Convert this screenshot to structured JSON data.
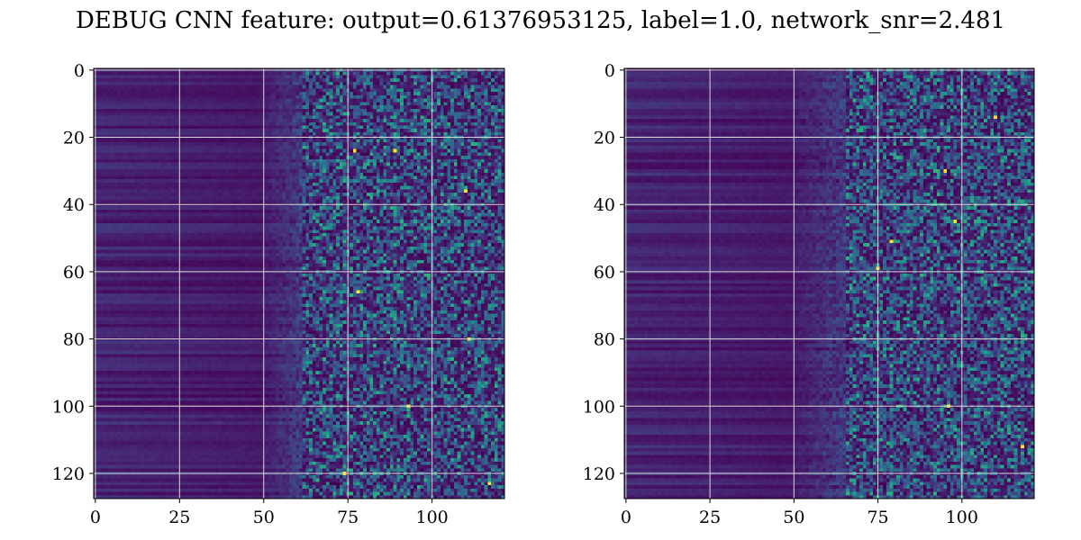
{
  "title": "DEBUG CNN feature: output=0.61376953125, label=1.0, network_snr=2.481",
  "colormap": "viridis",
  "colors": {
    "low": "#440154",
    "mid_low": "#3b528b",
    "mid": "#21918c",
    "mid_high": "#5ec962",
    "high": "#fde725",
    "grid": "#d9d9d9"
  },
  "chart_data": [
    {
      "type": "heatmap",
      "title": "",
      "xlabel": "",
      "ylabel": "",
      "grid": true,
      "xlim": [
        0,
        121
      ],
      "ylim": [
        127,
        0
      ],
      "xticks": [
        0,
        25,
        50,
        75,
        100
      ],
      "yticks": [
        0,
        20,
        40,
        60,
        80,
        100,
        120
      ],
      "shape": [
        128,
        122
      ],
      "value_range": [
        0,
        1
      ],
      "description_of_values": "dark (low) for x < ~50, increasingly noisy bright speckle for x > ~60",
      "dark_region_until_x": 50,
      "noise_starts_x": 62,
      "bright_spots": [
        [
          77,
          24
        ],
        [
          78,
          66
        ],
        [
          110,
          36
        ],
        [
          111,
          80
        ],
        [
          74,
          120
        ],
        [
          117,
          123
        ],
        [
          93,
          100
        ],
        [
          89,
          24
        ]
      ]
    },
    {
      "type": "heatmap",
      "title": "",
      "xlabel": "",
      "ylabel": "",
      "grid": true,
      "xlim": [
        0,
        121
      ],
      "ylim": [
        127,
        0
      ],
      "xticks": [
        0,
        25,
        50,
        75,
        100
      ],
      "yticks": [
        0,
        20,
        40,
        60,
        80,
        100,
        120
      ],
      "shape": [
        128,
        122
      ],
      "value_range": [
        0,
        1
      ],
      "description_of_values": "dark (low) for x < ~50, increasingly noisy bright speckle for x > ~65",
      "dark_region_until_x": 50,
      "noise_starts_x": 66,
      "bright_spots": [
        [
          75,
          59
        ],
        [
          96,
          100
        ],
        [
          110,
          14
        ],
        [
          118,
          112
        ],
        [
          98,
          45
        ],
        [
          79,
          51
        ],
        [
          95,
          30
        ]
      ]
    }
  ]
}
